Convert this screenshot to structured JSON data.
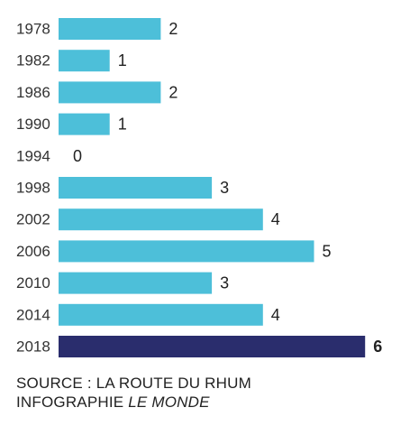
{
  "chart_data": {
    "type": "bar",
    "orientation": "horizontal",
    "categories": [
      "1978",
      "1982",
      "1986",
      "1990",
      "1994",
      "1998",
      "2002",
      "2006",
      "2010",
      "2014",
      "2018"
    ],
    "values": [
      2,
      1,
      2,
      1,
      0,
      3,
      4,
      5,
      3,
      4,
      6
    ],
    "highlight_category": "2018",
    "xlim": [
      0,
      6
    ],
    "grid": false,
    "legend": "none",
    "colors": {
      "bar": "#4dbfd9",
      "highlight": "#2a2d6d"
    }
  },
  "footer": {
    "source": "SOURCE : LA ROUTE DU RHUM",
    "credit_prefix": "INFOGRAPHIE ",
    "credit_brand": "LE MONDE"
  }
}
